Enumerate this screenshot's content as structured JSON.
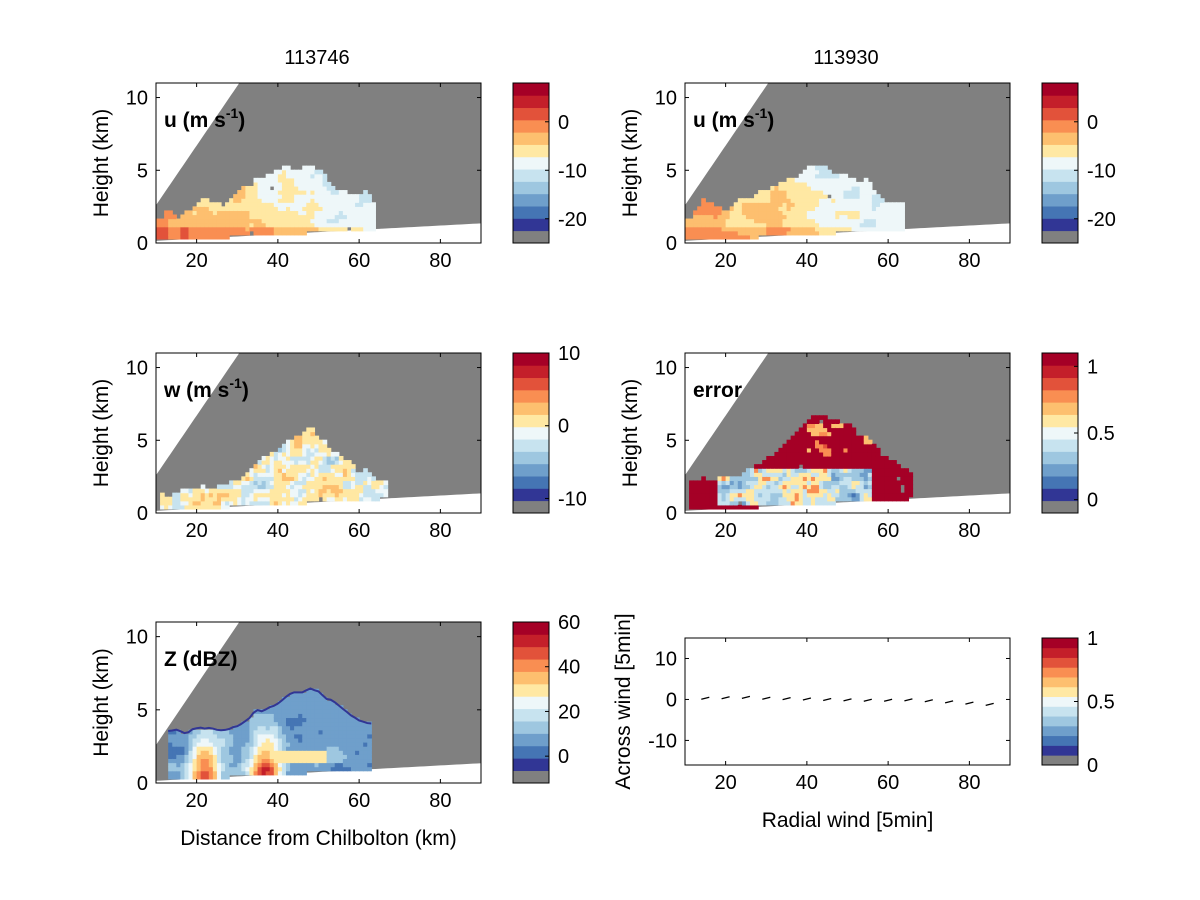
{
  "figure": {
    "col_titles": [
      "113746",
      "113930"
    ]
  },
  "colors": {
    "background": "#ffffff",
    "no_data_gray": "#808080",
    "palette": [
      "#313695",
      "#4575b4",
      "#6f9fcb",
      "#9ec7e0",
      "#c7e3ef",
      "#eef7f9",
      "#ffe8a3",
      "#fdbf6f",
      "#f98e52",
      "#e2523a",
      "#c41f2a",
      "#a50026"
    ]
  },
  "chart_data": [
    {
      "id": "u1",
      "type": "heatmap",
      "label": "u (m s",
      "label_sup": "-1",
      "label_close": ")",
      "ylabel": "Height (km)",
      "xlabel": "",
      "xlim": [
        10,
        90
      ],
      "ylim": [
        0,
        11
      ],
      "xticks": [
        "20",
        "40",
        "60",
        "80"
      ],
      "xtick_values": [
        20,
        40,
        60,
        80
      ],
      "yticks": [
        "0",
        "5",
        "10"
      ],
      "ytick_values": [
        0,
        5,
        10
      ],
      "colorbar": {
        "ticks": [
          "0",
          "-10",
          "-20"
        ],
        "values": [
          0,
          -10,
          -20
        ],
        "range": [
          -25,
          8
        ]
      },
      "field": "u"
    },
    {
      "id": "u2",
      "type": "heatmap",
      "label": "u (m s",
      "label_sup": "-1",
      "label_close": ")",
      "ylabel": "Height (km)",
      "xlabel": "",
      "xlim": [
        10,
        90
      ],
      "ylim": [
        0,
        11
      ],
      "xticks": [
        "20",
        "40",
        "60",
        "80"
      ],
      "xtick_values": [
        20,
        40,
        60,
        80
      ],
      "yticks": [
        "0",
        "5",
        "10"
      ],
      "ytick_values": [
        0,
        5,
        10
      ],
      "colorbar": {
        "ticks": [
          "0",
          "-10",
          "-20"
        ],
        "values": [
          0,
          -10,
          -20
        ],
        "range": [
          -25,
          8
        ]
      },
      "field": "u"
    },
    {
      "id": "w",
      "type": "heatmap",
      "label": "w (m s",
      "label_sup": "-1",
      "label_close": ")",
      "ylabel": "Height (km)",
      "xlabel": "",
      "xlim": [
        10,
        90
      ],
      "ylim": [
        0,
        11
      ],
      "xticks": [
        "20",
        "40",
        "60",
        "80"
      ],
      "xtick_values": [
        20,
        40,
        60,
        80
      ],
      "yticks": [
        "0",
        "5",
        "10"
      ],
      "ytick_values": [
        0,
        5,
        10
      ],
      "colorbar": {
        "ticks": [
          "10",
          "0",
          "-10"
        ],
        "values": [
          10,
          0,
          -10
        ],
        "range": [
          -12,
          10
        ]
      },
      "field": "w"
    },
    {
      "id": "err",
      "type": "heatmap",
      "label": "error",
      "label_sup": "",
      "label_close": "",
      "ylabel": "Height (km)",
      "xlabel": "",
      "xlim": [
        10,
        90
      ],
      "ylim": [
        0,
        11
      ],
      "xticks": [
        "20",
        "40",
        "60",
        "80"
      ],
      "xtick_values": [
        20,
        40,
        60,
        80
      ],
      "yticks": [
        "0",
        "5",
        "10"
      ],
      "ytick_values": [
        0,
        5,
        10
      ],
      "colorbar": {
        "ticks": [
          "1",
          "0.5",
          "0"
        ],
        "values": [
          1,
          0.5,
          0
        ],
        "range": [
          -0.1,
          1.1
        ]
      },
      "field": "err"
    },
    {
      "id": "z",
      "type": "heatmap",
      "label": "Z (dBZ)",
      "label_sup": "",
      "label_close": "",
      "ylabel": "Height (km)",
      "xlabel": "Distance from Chilbolton (km)",
      "xlim": [
        10,
        90
      ],
      "ylim": [
        0,
        11
      ],
      "xticks": [
        "20",
        "40",
        "60",
        "80"
      ],
      "xtick_values": [
        20,
        40,
        60,
        80
      ],
      "yticks": [
        "0",
        "5",
        "10"
      ],
      "ytick_values": [
        0,
        5,
        10
      ],
      "colorbar": {
        "ticks": [
          "60",
          "40",
          "20",
          "0"
        ],
        "values": [
          60,
          40,
          20,
          0
        ],
        "range": [
          -12,
          60
        ]
      },
      "field": "z"
    },
    {
      "id": "q",
      "type": "scatter",
      "label": "",
      "label_sup": "",
      "label_close": "",
      "ylabel": "Across wind [5min]",
      "xlabel": "Radial wind [5min]",
      "xlim": [
        10,
        90
      ],
      "ylim": [
        -16,
        15
      ],
      "xticks": [
        "20",
        "40",
        "60",
        "80"
      ],
      "xtick_values": [
        20,
        40,
        60,
        80
      ],
      "yticks": [
        "10",
        "0",
        "-10"
      ],
      "ytick_values": [
        10,
        0,
        -10
      ],
      "colorbar": {
        "ticks": [
          "1",
          "0.5",
          "0"
        ],
        "values": [
          1,
          0.5,
          0
        ],
        "range": [
          0,
          1
        ]
      },
      "x": [
        15,
        20,
        25,
        30,
        35,
        40,
        45,
        50,
        55,
        60,
        65,
        70,
        75,
        80,
        85
      ],
      "y": [
        0.3,
        0.4,
        0.5,
        0.3,
        0.2,
        0.1,
        0,
        -0.1,
        -0.2,
        -0.2,
        -0.1,
        -0.3,
        -0.6,
        -0.9,
        -1.2
      ]
    }
  ]
}
